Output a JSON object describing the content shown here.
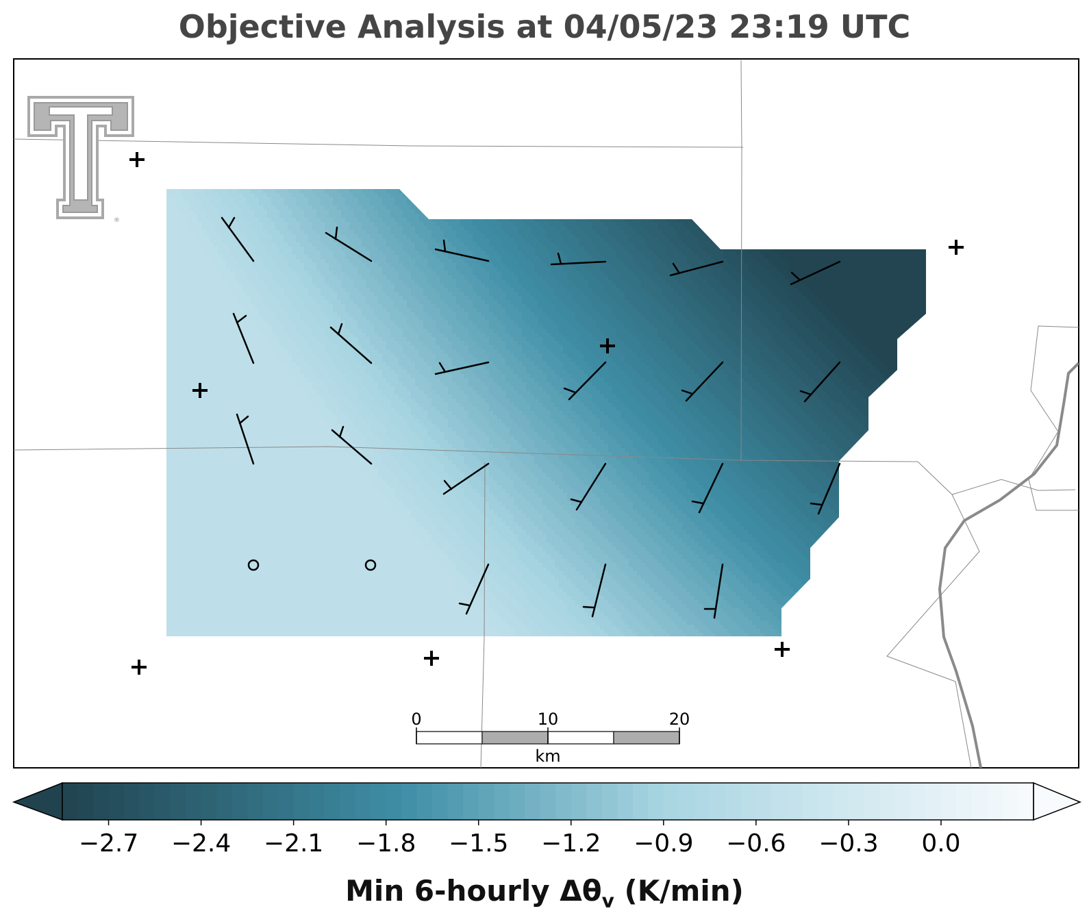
{
  "title": "Objective Analysis at 04/05/23 23:19 UTC",
  "colorbar": {
    "label_main": "Min 6-hourly Δθ",
    "label_sub": "v",
    "label_units": " (K/min)",
    "ticks": [
      "−2.7",
      "−2.4",
      "−2.1",
      "−1.8",
      "−1.5",
      "−1.2",
      "−0.9",
      "−0.6",
      "−0.3",
      "0.0"
    ],
    "tick_values": [
      -2.7,
      -2.4,
      -2.1,
      -1.8,
      -1.5,
      -1.2,
      -0.9,
      -0.6,
      -0.3,
      0.0
    ],
    "range": [
      -2.85,
      0.3
    ],
    "extend": "both",
    "colors": {
      "low": "#21434f",
      "mid": "#3f8ea6",
      "light": "#a9d5e2",
      "high": "#f8fbfd"
    }
  },
  "scalebar": {
    "labels": [
      "0",
      "10",
      "20"
    ],
    "units": "km"
  },
  "field": {
    "min_value": -2.85,
    "max_value": -0.6,
    "gradient": "increasing toward west-southwest"
  },
  "stations": {
    "plus_marker": "+",
    "circle_marker": "o",
    "plus_count": 8,
    "calm_count": 2
  },
  "wind_barbs": {
    "units": "kt",
    "barb_count": 22
  },
  "logo": {
    "text": "TT",
    "icon": "texas-tech-double-t-logo",
    "mark": "®"
  },
  "map_style": {
    "border_color": "#888888",
    "river_color": "#8a8a8a",
    "frame_color": "#000000"
  }
}
